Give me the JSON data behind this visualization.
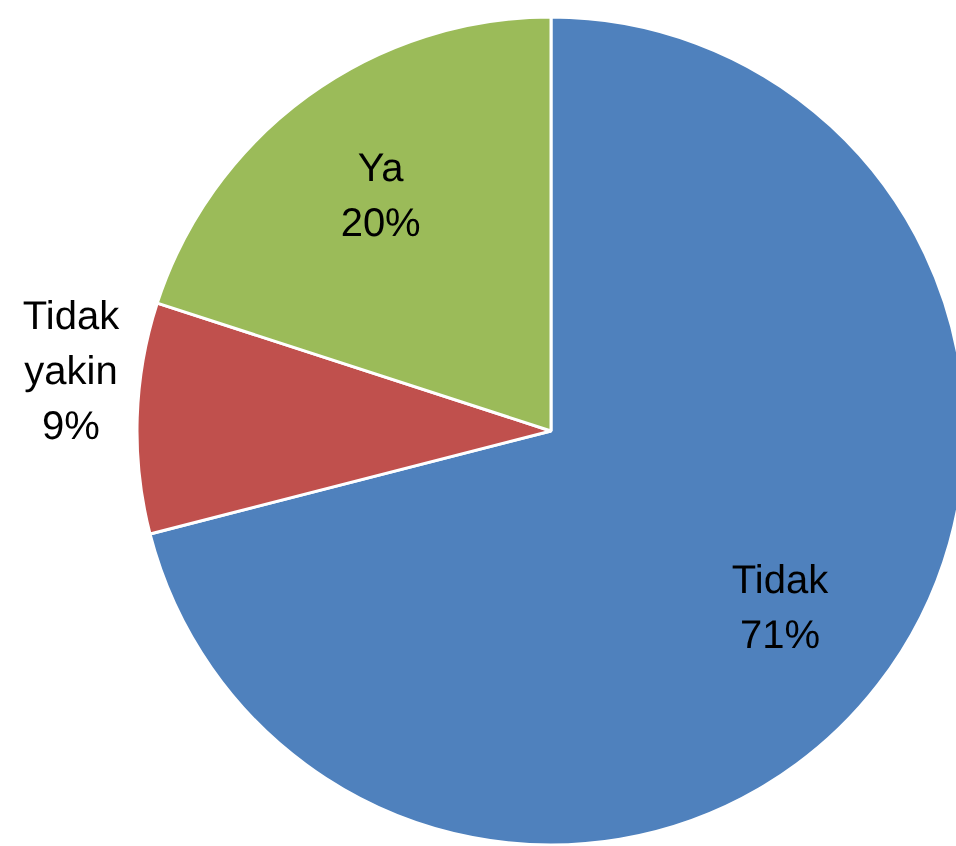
{
  "chart_data": {
    "type": "pie",
    "categories": [
      "Tidak",
      "Tidak yakin",
      "Ya"
    ],
    "values": [
      71,
      9,
      20
    ],
    "colors": [
      "#4f81bd",
      "#c0504d",
      "#9bbb59"
    ],
    "value_labels": [
      "71%",
      "9%",
      "20%"
    ]
  }
}
